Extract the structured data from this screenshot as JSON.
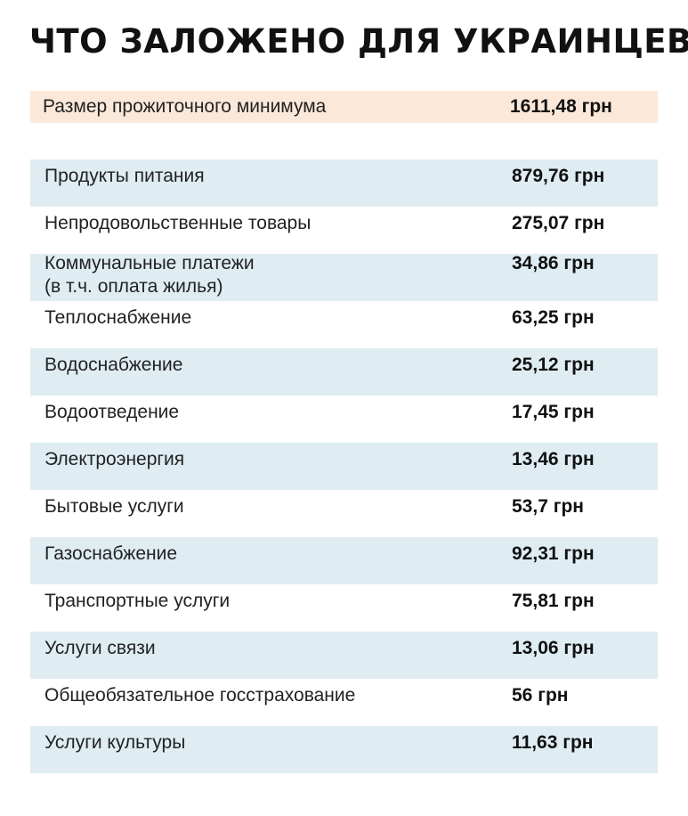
{
  "title": "ЧТО ЗАЛОЖЕНО ДЛЯ УКРАИНЦЕВ",
  "summary": {
    "label": "Размер прожиточного минимума",
    "value": "1611,48 грн"
  },
  "rows": [
    {
      "label": "Продукты питания",
      "value": "879,76 грн"
    },
    {
      "label": "Непродовольственные товары",
      "value": "275,07 грн"
    },
    {
      "label": "Коммунальные платежи\n(в т.ч. оплата жилья)",
      "value": "34,86 грн"
    },
    {
      "label": "Теплоснабжение",
      "value": "63,25 грн"
    },
    {
      "label": "Водоснабжение",
      "value": "25,12 грн"
    },
    {
      "label": "Водоотведение",
      "value": "17,45 грн"
    },
    {
      "label": "Электроэнергия",
      "value": "13,46 грн"
    },
    {
      "label": "Бытовые услуги",
      "value": "53,7 грн"
    },
    {
      "label": "Газоснабжение",
      "value": "92,31 грн"
    },
    {
      "label": "Транспортные услуги",
      "value": "75,81 грн"
    },
    {
      "label": "Услуги связи",
      "value": "13,06 грн"
    },
    {
      "label": "Общеобязательное госстрахование",
      "value": "56 грн"
    },
    {
      "label": "Услуги культуры",
      "value": "11,63 грн"
    }
  ],
  "colors": {
    "summary_background": "#fbe8d9",
    "stripe_background": "#dfedf3",
    "text": "#1a1a1a"
  }
}
